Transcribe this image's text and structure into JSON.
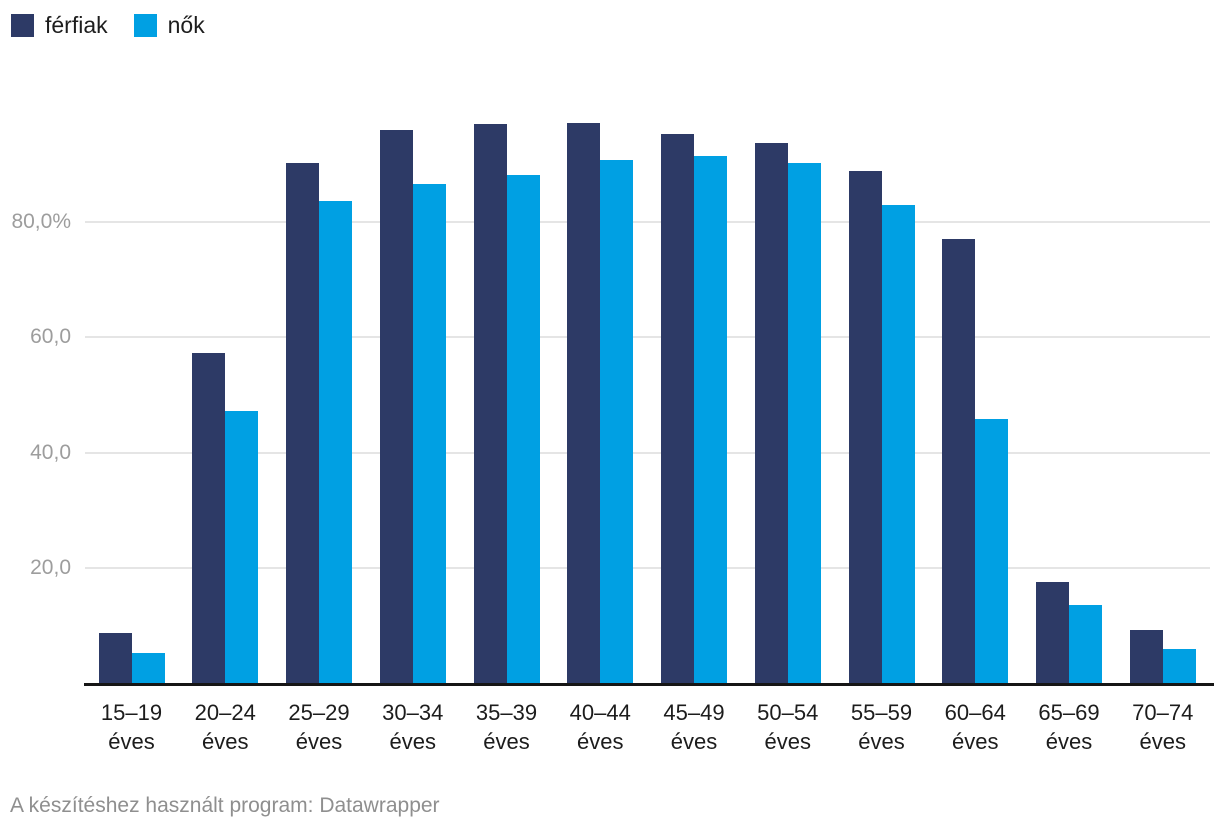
{
  "chart_data": {
    "type": "bar",
    "title": "",
    "categories": [
      "15–19",
      "20–24",
      "25–29",
      "30–34",
      "35–39",
      "40–44",
      "45–49",
      "50–54",
      "55–59",
      "60–64",
      "65–69",
      "70–74"
    ],
    "category_suffix": "éves",
    "series": [
      {
        "name": "férfiak",
        "color": "#2d3a66",
        "values": [
          8.9,
          57.2,
          90.1,
          95.8,
          96.9,
          97.1,
          95.1,
          93.6,
          88.7,
          76.9,
          17.7,
          9.4
        ]
      },
      {
        "name": "nők",
        "color": "#00a0e3",
        "values": [
          5.4,
          47.3,
          83.5,
          86.5,
          88.0,
          90.7,
          91.4,
          90.1,
          82.8,
          45.9,
          13.7,
          6.1
        ]
      }
    ],
    "xlabel": "",
    "ylabel": "",
    "ylim": [
      0,
      100
    ],
    "y_ticks": [
      {
        "value": 20,
        "label": "20,0"
      },
      {
        "value": 40,
        "label": "40,0"
      },
      {
        "value": 60,
        "label": "60,0"
      },
      {
        "value": 80,
        "label": "80,0%"
      }
    ],
    "grid": true,
    "legend_position": "top-left"
  },
  "footer": {
    "text": "A készítéshez használt program: Datawrapper"
  }
}
